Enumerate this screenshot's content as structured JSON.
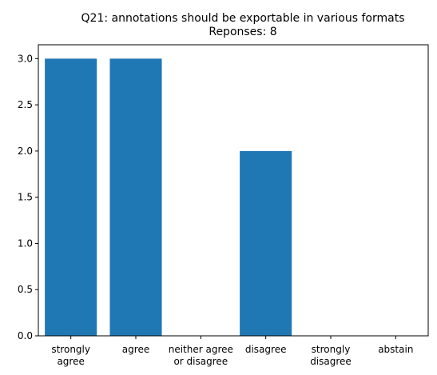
{
  "chart_data": {
    "type": "bar",
    "title": "Q21: annotations should be exportable in various formats",
    "subtitle": "Reponses: 8",
    "categories": [
      "strongly\nagree",
      "agree",
      "neither agree\nor disagree",
      "disagree",
      "strongly\ndisagree",
      "abstain"
    ],
    "values": [
      3,
      3,
      0,
      2,
      0,
      0
    ],
    "yticks": [
      "0.0",
      "0.5",
      "1.0",
      "1.5",
      "2.0",
      "2.5",
      "3.0"
    ],
    "ylim": [
      0,
      3.15
    ],
    "grid": false,
    "colors": {
      "bar": "#1f77b4",
      "axis": "#000000"
    }
  }
}
